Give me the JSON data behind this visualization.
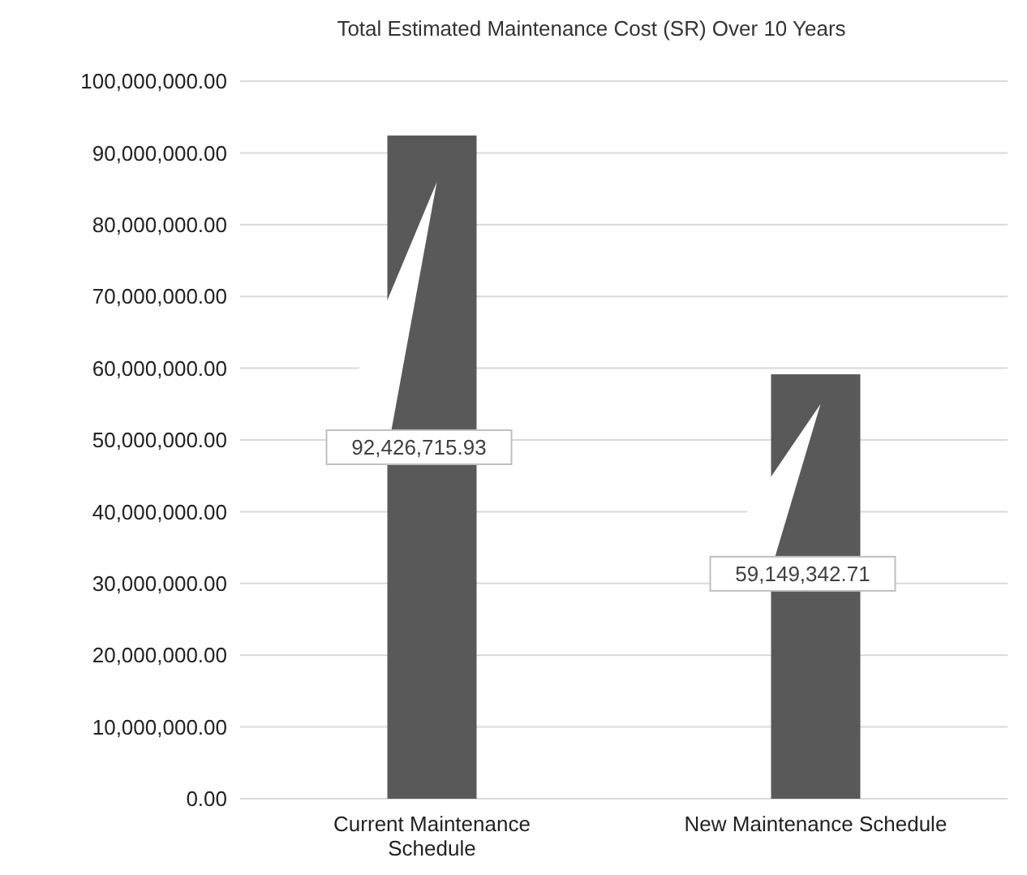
{
  "chart_data": {
    "type": "bar",
    "title": "Total Estimated Maintenance Cost (SR) Over 10 Years",
    "categories": [
      "Current Maintenance Schedule",
      "New Maintenance Schedule"
    ],
    "values": [
      92426715.93,
      59149342.71
    ],
    "color": "#595959",
    "ylim": [
      0,
      100000000
    ],
    "yticks": [
      {
        "value": 0,
        "label": "0.00"
      },
      {
        "value": 10000000,
        "label": "10,000,000.00"
      },
      {
        "value": 20000000,
        "label": "20,000,000.00"
      },
      {
        "value": 30000000,
        "label": "30,000,000.00"
      },
      {
        "value": 40000000,
        "label": "40,000,000.00"
      },
      {
        "value": 50000000,
        "label": "50,000,000.00"
      },
      {
        "value": 60000000,
        "label": "60,000,000.00"
      },
      {
        "value": 70000000,
        "label": "70,000,000.00"
      },
      {
        "value": 80000000,
        "label": "80,000,000.00"
      },
      {
        "value": 90000000,
        "label": "90,000,000.00"
      },
      {
        "value": 100000000,
        "label": "100,000,000.00"
      }
    ],
    "value_labels": [
      "92,426,715.93",
      "59,149,342.71"
    ],
    "grid": "y"
  }
}
